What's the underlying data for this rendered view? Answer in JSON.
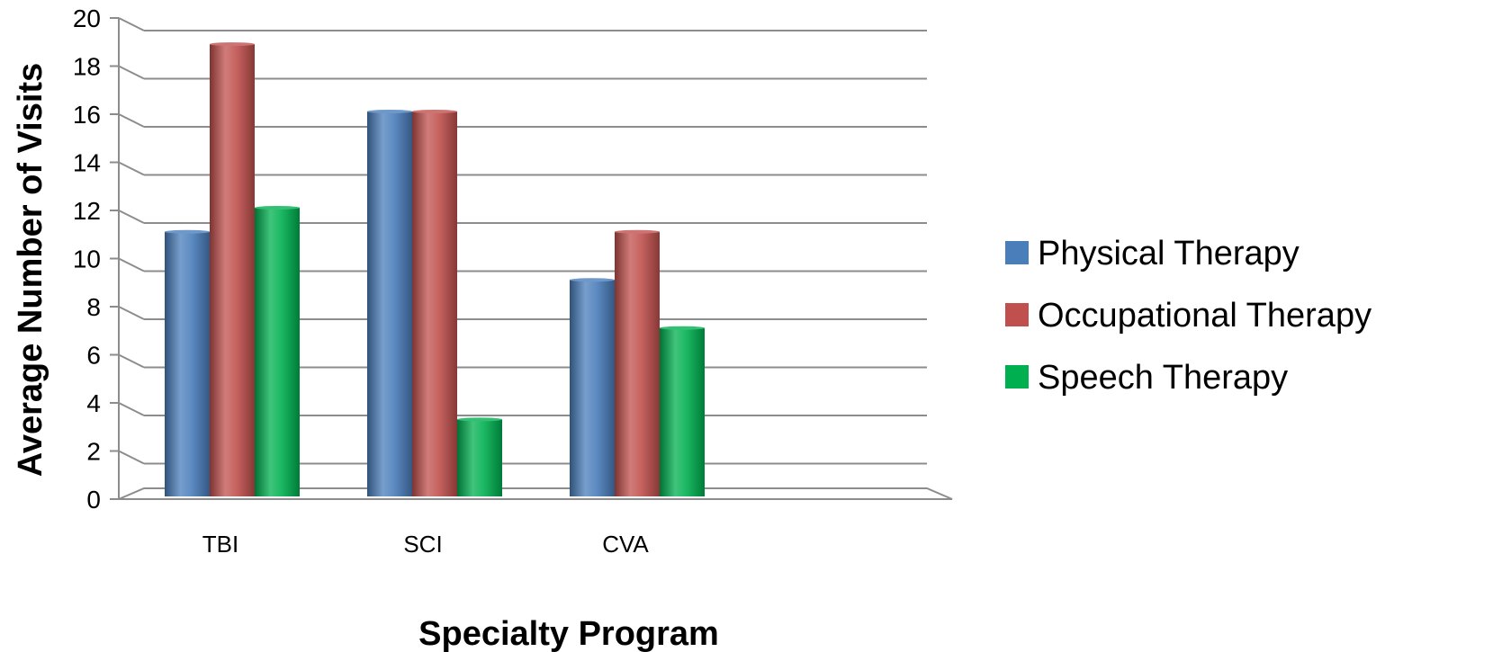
{
  "chart_data": {
    "type": "bar",
    "title": "",
    "xlabel": "Specialty Program",
    "ylabel": "Average Number of Visits",
    "categories": [
      "TBI",
      "SCI",
      "CVA"
    ],
    "series": [
      {
        "name": "Physical Therapy",
        "values": [
          11,
          16,
          9
        ],
        "color": "#4a7ebb"
      },
      {
        "name": "Occupational Therapy",
        "values": [
          18.8,
          16,
          11
        ],
        "color": "#c0504d"
      },
      {
        "name": "Speech Therapy",
        "values": [
          12,
          3.2,
          7
        ],
        "color": "#00b050"
      }
    ],
    "ylim": [
      0,
      20
    ],
    "yticks": [
      "0",
      "2",
      "4",
      "6",
      "8",
      "10",
      "12",
      "14",
      "16",
      "18",
      "20"
    ],
    "grid": true,
    "legend_position": "right"
  }
}
